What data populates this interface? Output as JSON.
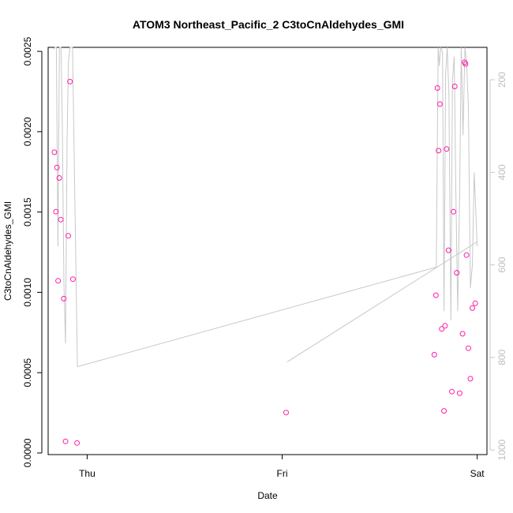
{
  "chart_data": {
    "type": "scatter",
    "title": "ATOM3 Northeast_Pacific_2 C3toCnAldehydes_GMI",
    "xlabel": "Date",
    "ylabel": "C3toCnAldehydes_GMI",
    "x_ticks": [
      "Thu",
      "Fri",
      "Sat"
    ],
    "x_tick_days": [
      0,
      1,
      2
    ],
    "xlim_days": [
      -0.2,
      2.05
    ],
    "ylim": [
      -1e-05,
      0.002525
    ],
    "y_ticks": [
      0.0,
      0.0005,
      0.001,
      0.0015,
      0.002,
      0.0025
    ],
    "y_tick_labels": [
      "0.0000",
      "0.0005",
      "0.0010",
      "0.0015",
      "0.0020",
      "0.0025"
    ],
    "right_axis": {
      "label": "",
      "reversed": true,
      "ticks": [
        200,
        400,
        600,
        800,
        1000
      ],
      "tick_labels": [
        "200",
        "400",
        "600",
        "800",
        "1000"
      ],
      "lim": [
        130,
        1010
      ]
    },
    "grid": false,
    "series": [
      {
        "type": "scatter",
        "color": "#ff1aa8",
        "marker": "open-circle",
        "points": [
          {
            "x": -0.168,
            "y": 0.001872
          },
          {
            "x": -0.16,
            "y": 0.001502
          },
          {
            "x": -0.155,
            "y": 0.001777
          },
          {
            "x": -0.149,
            "y": 0.001072
          },
          {
            "x": -0.143,
            "y": 0.001712
          },
          {
            "x": -0.135,
            "y": 0.001453
          },
          {
            "x": -0.12,
            "y": 0.000961
          },
          {
            "x": -0.111,
            "y": 7.2e-05
          },
          {
            "x": -0.097,
            "y": 0.001352
          },
          {
            "x": -0.088,
            "y": 0.002312
          },
          {
            "x": -0.073,
            "y": 0.001082
          },
          {
            "x": -0.052,
            "y": 6.2e-05
          },
          {
            "x": 1.02,
            "y": 0.000252
          },
          {
            "x": 1.78,
            "y": 0.000612
          },
          {
            "x": 1.788,
            "y": 0.000982
          },
          {
            "x": 1.796,
            "y": 0.002272
          },
          {
            "x": 1.802,
            "y": 0.001882
          },
          {
            "x": 1.809,
            "y": 0.002172
          },
          {
            "x": 1.818,
            "y": 0.000772
          },
          {
            "x": 1.83,
            "y": 0.000262
          },
          {
            "x": 1.835,
            "y": 0.000792
          },
          {
            "x": 1.843,
            "y": 0.001892
          },
          {
            "x": 1.853,
            "y": 0.001262
          },
          {
            "x": 1.87,
            "y": 0.000382
          },
          {
            "x": 1.878,
            "y": 0.001502
          },
          {
            "x": 1.885,
            "y": 0.002282
          },
          {
            "x": 1.895,
            "y": 0.001122
          },
          {
            "x": 1.91,
            "y": 0.000372
          },
          {
            "x": 1.925,
            "y": 0.000742
          },
          {
            "x": 1.935,
            "y": 0.002432
          },
          {
            "x": 1.94,
            "y": 0.002422
          },
          {
            "x": 1.945,
            "y": 0.001232
          },
          {
            "x": 1.955,
            "y": 0.000652
          },
          {
            "x": 1.965,
            "y": 0.000462
          },
          {
            "x": 1.975,
            "y": 0.000902
          },
          {
            "x": 1.99,
            "y": 0.000932
          }
        ]
      },
      {
        "type": "line",
        "axis": "right",
        "color": "#c8c8c8",
        "segments": [
          [
            {
              "x": -0.172,
              "y": 135
            },
            {
              "x": -0.165,
              "y": 130
            },
            {
              "x": -0.158,
              "y": 130
            },
            {
              "x": -0.15,
              "y": 560
            },
            {
              "x": -0.142,
              "y": 130
            },
            {
              "x": -0.134,
              "y": 130
            },
            {
              "x": -0.127,
              "y": 300
            },
            {
              "x": -0.119,
              "y": 640
            },
            {
              "x": -0.111,
              "y": 770
            },
            {
              "x": -0.103,
              "y": 330
            },
            {
              "x": -0.096,
              "y": 160
            },
            {
              "x": -0.088,
              "y": 130
            },
            {
              "x": -0.075,
              "y": 130
            },
            {
              "x": -0.05,
              "y": 820
            },
            {
              "x": 1.79,
              "y": 605
            },
            {
              "x": 1.8,
              "y": 130
            },
            {
              "x": 1.806,
              "y": 170
            },
            {
              "x": 1.812,
              "y": 130
            },
            {
              "x": 1.822,
              "y": 140
            },
            {
              "x": 1.83,
              "y": 700
            },
            {
              "x": 1.838,
              "y": 190
            },
            {
              "x": 1.846,
              "y": 130
            },
            {
              "x": 1.855,
              "y": 230
            },
            {
              "x": 1.865,
              "y": 720
            },
            {
              "x": 1.873,
              "y": 200
            },
            {
              "x": 1.882,
              "y": 150
            },
            {
              "x": 1.89,
              "y": 430
            },
            {
              "x": 1.9,
              "y": 700
            },
            {
              "x": 1.91,
              "y": 450
            },
            {
              "x": 1.918,
              "y": 130
            },
            {
              "x": 1.927,
              "y": 320
            },
            {
              "x": 1.937,
              "y": 130
            },
            {
              "x": 1.945,
              "y": 160
            },
            {
              "x": 1.955,
              "y": 260
            },
            {
              "x": 1.965,
              "y": 650
            },
            {
              "x": 1.975,
              "y": 600
            },
            {
              "x": 1.985,
              "y": 400
            },
            {
              "x": 2.0,
              "y": 560
            }
          ],
          [
            {
              "x": 1.025,
              "y": 810
            },
            {
              "x": 2.0,
              "y": 550
            }
          ]
        ]
      }
    ]
  }
}
